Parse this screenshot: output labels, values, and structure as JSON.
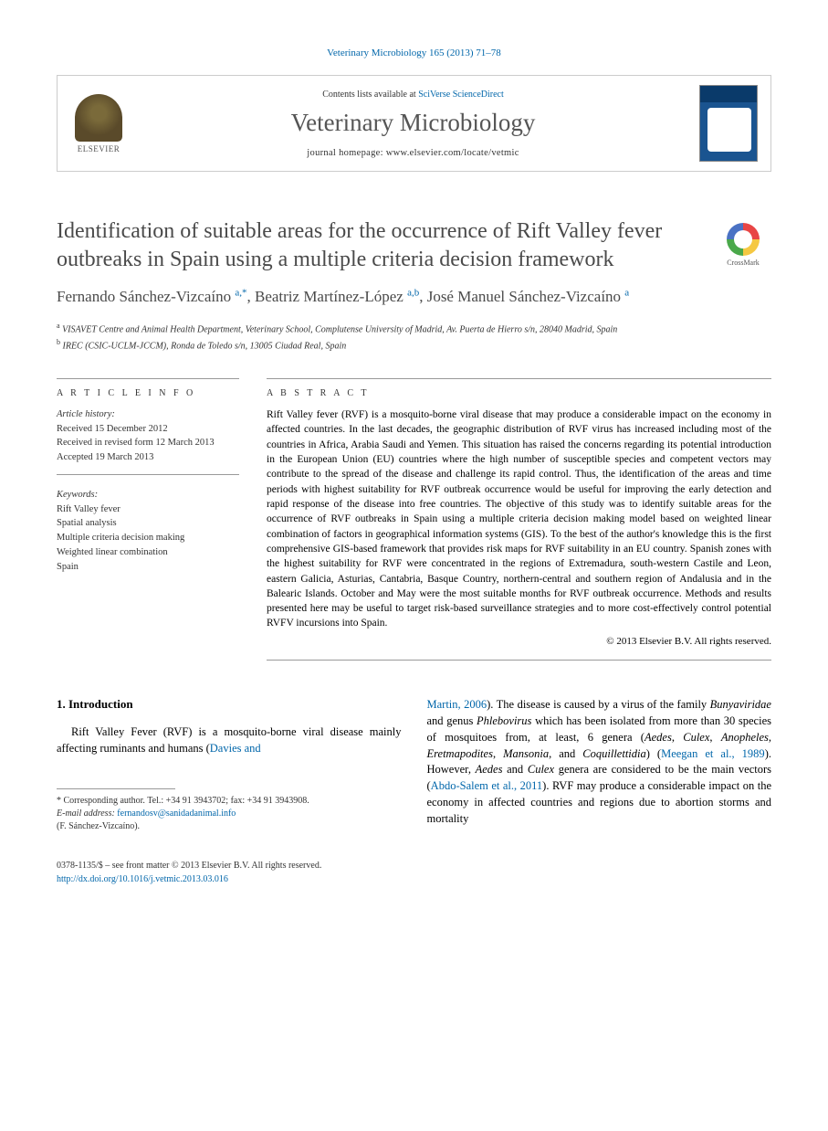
{
  "header": {
    "citation": "Veterinary Microbiology 165 (2013) 71–78",
    "contents_prefix": "Contents lists available at ",
    "contents_link": "SciVerse ScienceDirect",
    "journal_name": "Veterinary Microbiology",
    "homepage_label": "journal homepage: www.elsevier.com/locate/vetmic",
    "publisher": "ELSEVIER"
  },
  "crossmark": {
    "label": "CrossMark"
  },
  "article": {
    "title": "Identification of suitable areas for the occurrence of Rift Valley fever outbreaks in Spain using a multiple criteria decision framework",
    "authors_html": "Fernando Sánchez-Vizcaíno <sup>a,*</sup>, Beatriz Martínez-López <sup>a,b</sup>, José Manuel Sánchez-Vizcaíno <sup>a</sup>",
    "affiliations": {
      "a": "VISAVET Centre and Animal Health Department, Veterinary School, Complutense University of Madrid, Av. Puerta de Hierro s/n, 28040 Madrid, Spain",
      "b": "IREC (CSIC-UCLM-JCCM), Ronda de Toledo s/n, 13005 Ciudad Real, Spain"
    }
  },
  "article_info": {
    "head": "A R T I C L E  I N F O",
    "history_label": "Article history:",
    "received": "Received 15 December 2012",
    "revised": "Received in revised form 12 March 2013",
    "accepted": "Accepted 19 March 2013",
    "keywords_label": "Keywords:",
    "keywords": [
      "Rift Valley fever",
      "Spatial analysis",
      "Multiple criteria decision making",
      "Weighted linear combination",
      "Spain"
    ]
  },
  "abstract": {
    "head": "A B S T R A C T",
    "text": "Rift Valley fever (RVF) is a mosquito-borne viral disease that may produce a considerable impact on the economy in affected countries. In the last decades, the geographic distribution of RVF virus has increased including most of the countries in Africa, Arabia Saudi and Yemen. This situation has raised the concerns regarding its potential introduction in the European Union (EU) countries where the high number of susceptible species and competent vectors may contribute to the spread of the disease and challenge its rapid control. Thus, the identification of the areas and time periods with highest suitability for RVF outbreak occurrence would be useful for improving the early detection and rapid response of the disease into free countries. The objective of this study was to identify suitable areas for the occurrence of RVF outbreaks in Spain using a multiple criteria decision making model based on weighted linear combination of factors in geographical information systems (GIS). To the best of the author's knowledge this is the first comprehensive GIS-based framework that provides risk maps for RVF suitability in an EU country. Spanish zones with the highest suitability for RVF were concentrated in the regions of Extremadura, south-western Castile and Leon, eastern Galicia, Asturias, Cantabria, Basque Country, northern-central and southern region of Andalusia and in the Balearic Islands. October and May were the most suitable months for RVF outbreak occurrence. Methods and results presented here may be useful to target risk-based surveillance strategies and to more cost-effectively control potential RVFV incursions into Spain.",
    "copyright": "© 2013 Elsevier B.V. All rights reserved."
  },
  "body": {
    "section1_title": "1. Introduction",
    "col1_p1_pre": "Rift Valley Fever (RVF) is a mosquito-borne viral disease mainly affecting ruminants and humans (",
    "col1_p1_ref": "Davies and",
    "col2_p1_ref": "Martin, 2006",
    "col2_p1_a": "). The disease is caused by a virus of the family ",
    "col2_p1_em1": "Bunyaviridae",
    "col2_p1_b": " and genus ",
    "col2_p1_em2": "Phlebovirus",
    "col2_p1_c": " which has been isolated from more than 30 species of mosquitoes from, at least, 6 genera (",
    "col2_p1_em3": "Aedes",
    "col2_p1_em4": "Culex",
    "col2_p1_em5": "Anopheles",
    "col2_p1_em6": "Eretmapodites",
    "col2_p1_em7": "Mansonia",
    "col2_p1_d": ", and ",
    "col2_p1_em8": "Coquillettidia",
    "col2_p1_e": ") (",
    "col2_p1_ref2": "Meegan et al., 1989",
    "col2_p1_f": "). However, ",
    "col2_p1_em9": "Aedes",
    "col2_p1_g": " and ",
    "col2_p1_em10": "Culex",
    "col2_p1_h": " genera are considered to be the main vectors (",
    "col2_p1_ref3": "Abdo-Salem et al., 2011",
    "col2_p1_i": "). RVF may produce a considerable impact on the economy in affected countries and regions due to abortion storms and mortality"
  },
  "footnote": {
    "corresponding": "* Corresponding author. Tel.: +34 91 3943702; fax: +34 91 3943908.",
    "email_label": "E-mail address:",
    "email": "fernandosv@sanidadanimal.info",
    "email_name": "(F. Sánchez-Vizcaíno)."
  },
  "footer": {
    "issn": "0378-1135/$ – see front matter © 2013 Elsevier B.V. All rights reserved.",
    "doi": "http://dx.doi.org/10.1016/j.vetmic.2013.03.016"
  },
  "colors": {
    "link": "#0066aa",
    "text": "#000000",
    "muted": "#4a4a4a",
    "border": "#999999"
  }
}
